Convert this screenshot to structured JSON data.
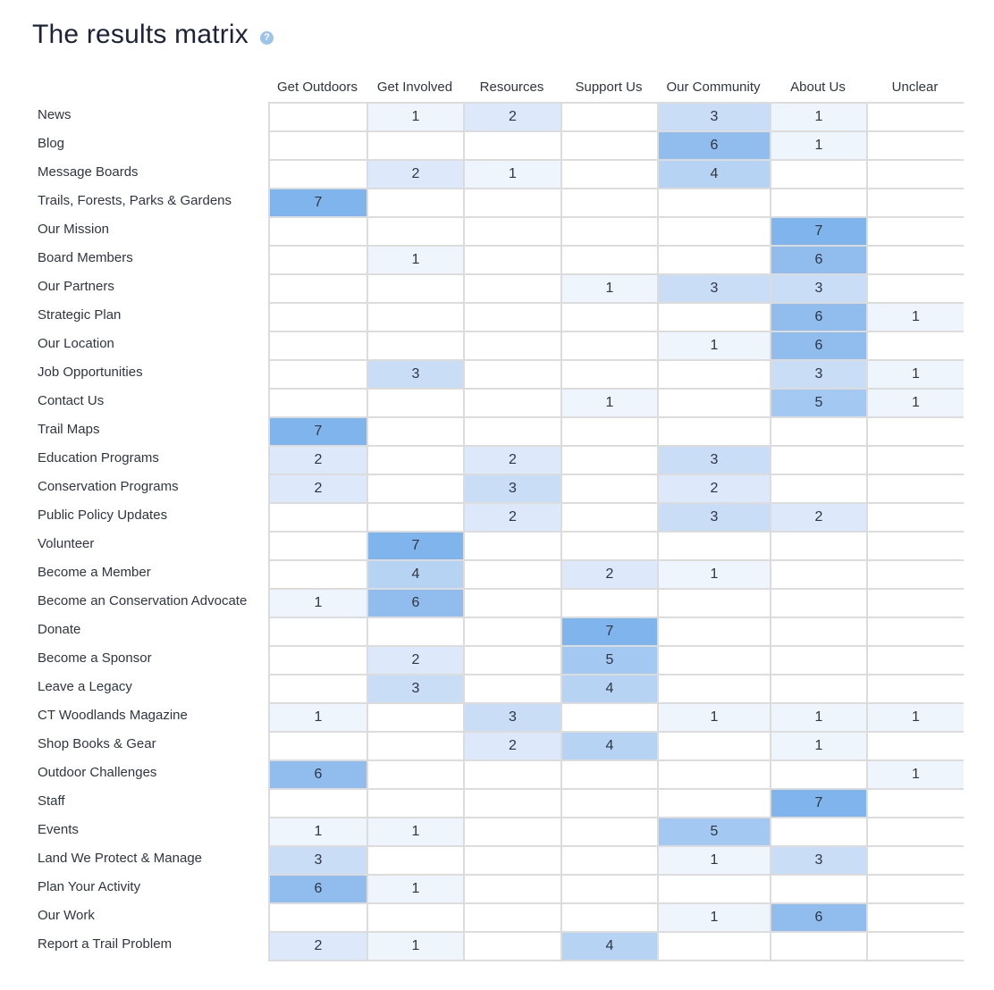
{
  "title": "The results matrix",
  "help_icon": "help-icon",
  "colors": {
    "scale": [
      "#ffffff",
      "#eef5fd",
      "#dde9fa",
      "#c9ddf6",
      "#b6d3f4",
      "#a3c8f1",
      "#90bdee",
      "#7fb4ec"
    ],
    "grid_line": "#dcdcdc",
    "text": "#2f3640"
  },
  "chart_data": {
    "type": "heatmap",
    "title": "The results matrix",
    "columns": [
      "Get Outdoors",
      "Get Involved",
      "Resources",
      "Support Us",
      "Our Community",
      "About Us",
      "Unclear"
    ],
    "rows": [
      {
        "label": "News",
        "values": [
          null,
          1,
          2,
          null,
          3,
          1,
          null
        ]
      },
      {
        "label": "Blog",
        "values": [
          null,
          null,
          null,
          null,
          6,
          1,
          null
        ]
      },
      {
        "label": "Message Boards",
        "values": [
          null,
          2,
          1,
          null,
          4,
          null,
          null
        ]
      },
      {
        "label": "Trails, Forests, Parks & Gardens",
        "values": [
          7,
          null,
          null,
          null,
          null,
          null,
          null
        ]
      },
      {
        "label": "Our Mission",
        "values": [
          null,
          null,
          null,
          null,
          null,
          7,
          null
        ]
      },
      {
        "label": "Board Members",
        "values": [
          null,
          1,
          null,
          null,
          null,
          6,
          null
        ]
      },
      {
        "label": "Our Partners",
        "values": [
          null,
          null,
          null,
          1,
          3,
          3,
          null
        ]
      },
      {
        "label": "Strategic Plan",
        "values": [
          null,
          null,
          null,
          null,
          null,
          6,
          1
        ]
      },
      {
        "label": "Our Location",
        "values": [
          null,
          null,
          null,
          null,
          1,
          6,
          null
        ]
      },
      {
        "label": "Job Opportunities",
        "values": [
          null,
          3,
          null,
          null,
          null,
          3,
          1
        ]
      },
      {
        "label": "Contact Us",
        "values": [
          null,
          null,
          null,
          1,
          null,
          5,
          1
        ]
      },
      {
        "label": "Trail Maps",
        "values": [
          7,
          null,
          null,
          null,
          null,
          null,
          null
        ]
      },
      {
        "label": "Education Programs",
        "values": [
          2,
          null,
          2,
          null,
          3,
          null,
          null
        ]
      },
      {
        "label": "Conservation Programs",
        "values": [
          2,
          null,
          3,
          null,
          2,
          null,
          null
        ]
      },
      {
        "label": "Public Policy Updates",
        "values": [
          null,
          null,
          2,
          null,
          3,
          2,
          null
        ]
      },
      {
        "label": "Volunteer",
        "values": [
          null,
          7,
          null,
          null,
          null,
          null,
          null
        ]
      },
      {
        "label": "Become a Member",
        "values": [
          null,
          4,
          null,
          2,
          1,
          null,
          null
        ]
      },
      {
        "label": "Become an Conservation Advocate",
        "values": [
          1,
          6,
          null,
          null,
          null,
          null,
          null
        ]
      },
      {
        "label": "Donate",
        "values": [
          null,
          null,
          null,
          7,
          null,
          null,
          null
        ]
      },
      {
        "label": "Become a Sponsor",
        "values": [
          null,
          2,
          null,
          5,
          null,
          null,
          null
        ]
      },
      {
        "label": "Leave a Legacy",
        "values": [
          null,
          3,
          null,
          4,
          null,
          null,
          null
        ]
      },
      {
        "label": "CT Woodlands Magazine",
        "values": [
          1,
          null,
          3,
          null,
          1,
          1,
          1
        ]
      },
      {
        "label": "Shop Books & Gear",
        "values": [
          null,
          null,
          2,
          4,
          null,
          1,
          null
        ]
      },
      {
        "label": "Outdoor Challenges",
        "values": [
          6,
          null,
          null,
          null,
          null,
          null,
          1
        ]
      },
      {
        "label": "Staff",
        "values": [
          null,
          null,
          null,
          null,
          null,
          7,
          null
        ]
      },
      {
        "label": "Events",
        "values": [
          1,
          1,
          null,
          null,
          5,
          null,
          null
        ]
      },
      {
        "label": "Land We Protect & Manage",
        "values": [
          3,
          null,
          null,
          null,
          1,
          3,
          null
        ]
      },
      {
        "label": "Plan Your Activity",
        "values": [
          6,
          1,
          null,
          null,
          null,
          null,
          null
        ]
      },
      {
        "label": "Our Work",
        "values": [
          null,
          null,
          null,
          null,
          1,
          6,
          null
        ]
      },
      {
        "label": "Report a Trail Problem",
        "values": [
          2,
          1,
          null,
          4,
          null,
          null,
          null
        ]
      }
    ],
    "value_range": [
      0,
      7
    ]
  }
}
